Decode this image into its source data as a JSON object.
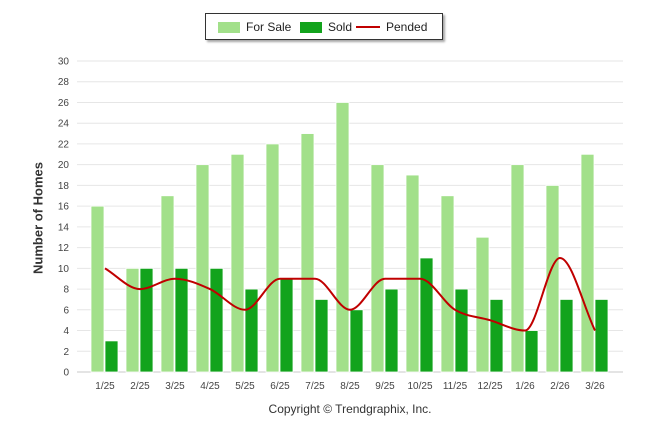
{
  "chart_data": {
    "type": "bar",
    "categories": [
      "1/25",
      "2/25",
      "3/25",
      "4/25",
      "5/25",
      "6/25",
      "7/25",
      "8/25",
      "9/25",
      "10/25",
      "11/25",
      "12/25",
      "1/26",
      "2/26",
      "3/26"
    ],
    "series": [
      {
        "name": "For Sale",
        "kind": "bar",
        "color": "#a2e08a",
        "values": [
          16,
          10,
          17,
          20,
          21,
          22,
          23,
          26,
          20,
          19,
          17,
          13,
          20,
          18,
          21
        ]
      },
      {
        "name": "Sold",
        "kind": "bar",
        "color": "#12a31c",
        "values": [
          3,
          10,
          10,
          10,
          8,
          9,
          7,
          6,
          8,
          11,
          8,
          7,
          4,
          7,
          7
        ]
      },
      {
        "name": "Pended",
        "kind": "line",
        "color": "#c00000",
        "values": [
          10,
          8,
          9,
          8,
          6,
          9,
          9,
          6,
          9,
          9,
          6,
          5,
          4,
          11,
          4
        ]
      }
    ],
    "title": "",
    "xlabel": "",
    "ylabel": "Number of Homes",
    "ylim": [
      0,
      30
    ],
    "yticks": [
      0,
      2,
      4,
      6,
      8,
      10,
      12,
      14,
      16,
      18,
      20,
      22,
      24,
      26,
      28,
      30
    ],
    "grid": true,
    "legend": "top-center"
  },
  "footer": {
    "copyright": "Copyright © Trendgraphix, Inc."
  }
}
